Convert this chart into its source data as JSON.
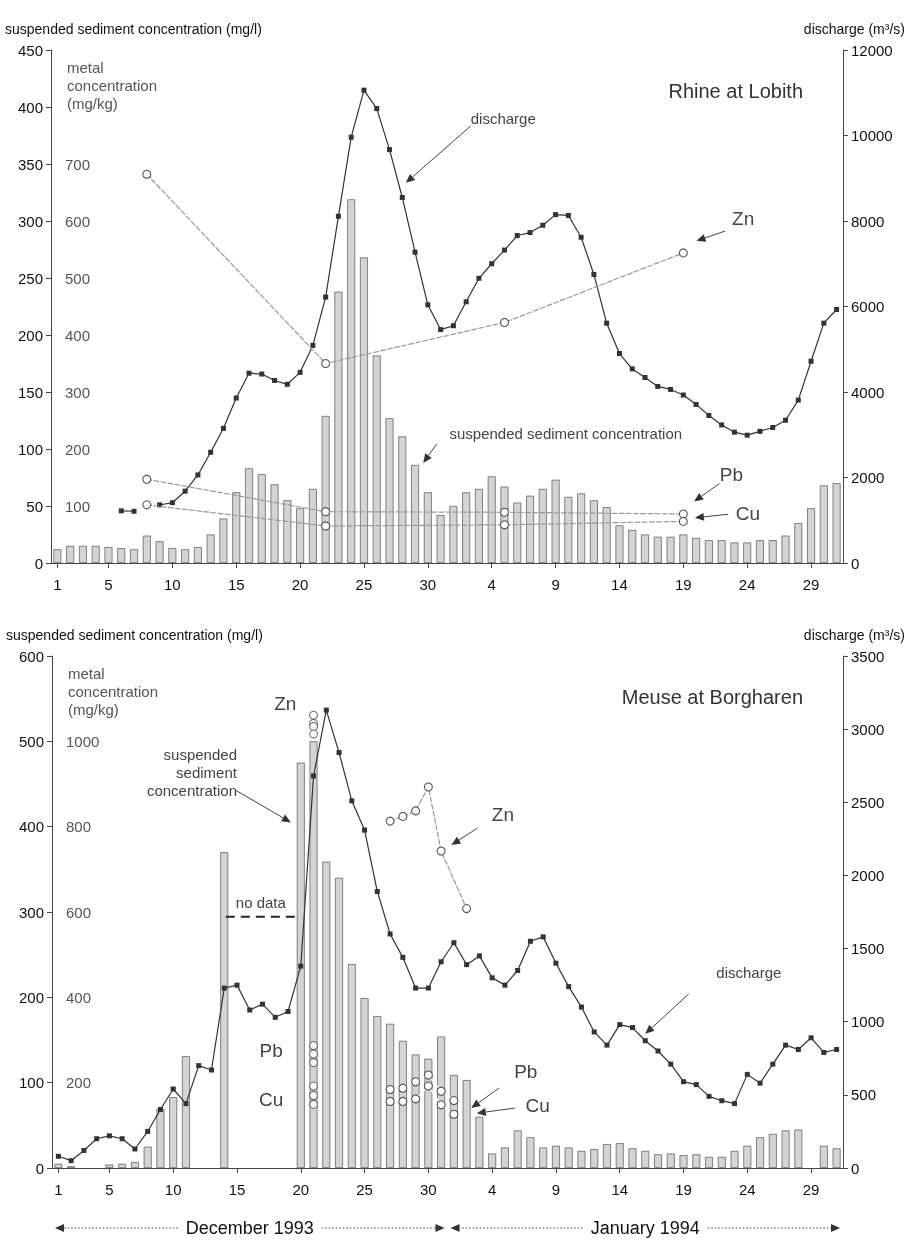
{
  "chart_data": [
    {
      "type": "bar",
      "title": "Rhine at Lobith",
      "ylabel": "suspended sediment concentration (mg/l)",
      "y2label": "discharge (m³/s)",
      "y3label": "metal\nconcentration\n(mg/kg)",
      "x": [
        "1993-12-01",
        "1993-12-02",
        "1993-12-03",
        "1993-12-04",
        "1993-12-05",
        "1993-12-06",
        "1993-12-07",
        "1993-12-08",
        "1993-12-09",
        "1993-12-10",
        "1993-12-11",
        "1993-12-12",
        "1993-12-13",
        "1993-12-14",
        "1993-12-15",
        "1993-12-16",
        "1993-12-17",
        "1993-12-18",
        "1993-12-19",
        "1993-12-20",
        "1993-12-21",
        "1993-12-22",
        "1993-12-23",
        "1993-12-24",
        "1993-12-25",
        "1993-12-26",
        "1993-12-27",
        "1993-12-28",
        "1993-12-29",
        "1993-12-30",
        "1993-12-31",
        "1994-01-01",
        "1994-01-02",
        "1994-01-03",
        "1994-01-04",
        "1994-01-05",
        "1994-01-06",
        "1994-01-07",
        "1994-01-08",
        "1994-01-09",
        "1994-01-10",
        "1994-01-11",
        "1994-01-12",
        "1994-01-13",
        "1994-01-14",
        "1994-01-15",
        "1994-01-16",
        "1994-01-17",
        "1994-01-18",
        "1994-01-19",
        "1994-01-20",
        "1994-01-21",
        "1994-01-22",
        "1994-01-23",
        "1994-01-24",
        "1994-01-25",
        "1994-01-26",
        "1994-01-27",
        "1994-01-28",
        "1994-01-29",
        "1994-01-30",
        "1994-01-31"
      ],
      "series": [
        {
          "color": "#d4d4d4",
          "values": [
            12,
            15,
            15,
            15,
            14,
            13,
            12,
            24,
            19,
            13,
            12,
            14,
            25,
            39,
            62,
            83,
            78,
            69,
            55,
            48,
            65,
            129,
            238,
            319,
            268,
            182,
            127,
            111,
            86,
            62,
            42,
            50,
            62,
            65,
            76,
            67,
            53,
            59,
            65,
            73,
            58,
            61,
            55,
            49,
            33,
            29,
            25,
            23,
            23,
            25,
            22,
            20,
            20,
            18,
            18,
            20,
            20,
            24,
            35,
            48,
            68,
            70
          ]
        },
        {
          "type": "line",
          "axis": "y2",
          "color": "#333333",
          "marker": "square",
          "line_style": "solid",
          "values": [
            null,
            null,
            null,
            null,
            null,
            1220,
            1210,
            null,
            1360,
            1410,
            1680,
            2060,
            2590,
            3150,
            3860,
            4440,
            4420,
            4270,
            4180,
            4460,
            5090,
            6220,
            8110,
            9960,
            11060,
            10630,
            9670,
            8550,
            7270,
            6040,
            5460,
            5550,
            6110,
            6660,
            7000,
            7320,
            7660,
            7730,
            7900,
            8150,
            8130,
            7620,
            6750,
            5610,
            4900,
            4540,
            4340,
            4130,
            4060,
            3930,
            3710,
            3450,
            3230,
            3060,
            2990,
            3080,
            3170,
            3340,
            3810,
            4720,
            5610,
            5930
          ]
        },
        {
          "type": "line",
          "axis": "y3",
          "color": "#999999",
          "marker": "circle",
          "line_style": "dashed",
          "x": [
            "1993-12-08",
            "1993-12-22",
            "1994-01-05",
            "1994-01-19"
          ],
          "values": [
            682,
            350,
            422,
            544
          ]
        },
        {
          "type": "line",
          "axis": "y3",
          "color": "#999999",
          "marker": "circle",
          "line_style": "dashed",
          "x": [
            "1993-12-08",
            "1993-12-22",
            "1994-01-05",
            "1994-01-19"
          ],
          "values": [
            147,
            90,
            89,
            86
          ]
        },
        {
          "type": "line",
          "axis": "y3",
          "color": "#999999",
          "marker": "circle",
          "line_style": "dashed",
          "x": [
            "1993-12-08",
            "1993-12-22",
            "1994-01-05",
            "1994-01-19"
          ],
          "values": [
            102,
            65,
            67,
            73
          ]
        }
      ],
      "xlim": [
        "1993-11-30T12:00",
        "1994-01-31T12:00"
      ],
      "xticks": [
        {
          "value": "1993-12-01",
          "label": "1"
        },
        {
          "value": "1993-12-05",
          "label": "5"
        },
        {
          "value": "1993-12-10",
          "label": "10"
        },
        {
          "value": "1993-12-15",
          "label": "15"
        },
        {
          "value": "1993-12-20",
          "label": "20"
        },
        {
          "value": "1993-12-25",
          "label": "25"
        },
        {
          "value": "1993-12-30",
          "label": "30"
        },
        {
          "value": "1994-01-04",
          "label": "4"
        },
        {
          "value": "1994-01-09",
          "label": "9"
        },
        {
          "value": "1994-01-14",
          "label": "14"
        },
        {
          "value": "1994-01-19",
          "label": "19"
        },
        {
          "value": "1994-01-24",
          "label": "24"
        },
        {
          "value": "1994-01-29",
          "label": "29"
        }
      ],
      "ylim": [
        0,
        450
      ],
      "yticks": [
        0,
        50,
        100,
        150,
        200,
        250,
        300,
        350,
        400,
        450
      ],
      "y2lim": [
        0,
        12000
      ],
      "y2ticks": [
        0,
        2000,
        4000,
        6000,
        8000,
        10000,
        12000
      ],
      "y3lim": [
        0,
        900
      ],
      "y3ticks": [
        100,
        200,
        300,
        400,
        500,
        600,
        700
      ],
      "annotations": [
        "discharge",
        "Zn",
        "suspended sediment concentration",
        "Pb",
        "Cu"
      ],
      "grid": false
    },
    {
      "type": "bar",
      "title": "Meuse at Borgharen",
      "ylabel": "suspended sediment concentration (mg/l)",
      "y2label": "discharge (m³/s)",
      "y3label": "metal\nconcentration\n(mg/kg)",
      "x": [
        "1993-12-01",
        "1993-12-02",
        "1993-12-03",
        "1993-12-04",
        "1993-12-05",
        "1993-12-06",
        "1993-12-07",
        "1993-12-08",
        "1993-12-09",
        "1993-12-10",
        "1993-12-11",
        "1993-12-12",
        "1993-12-13",
        "1993-12-14",
        "1993-12-15",
        "1993-12-16",
        "1993-12-17",
        "1993-12-18",
        "1993-12-19",
        "1993-12-20",
        "1993-12-21",
        "1993-12-22",
        "1993-12-23",
        "1993-12-24",
        "1993-12-25",
        "1993-12-26",
        "1993-12-27",
        "1993-12-28",
        "1993-12-29",
        "1993-12-30",
        "1993-12-31",
        "1994-01-01",
        "1994-01-02",
        "1994-01-03",
        "1994-01-04",
        "1994-01-05",
        "1994-01-06",
        "1994-01-07",
        "1994-01-08",
        "1994-01-09",
        "1994-01-10",
        "1994-01-11",
        "1994-01-12",
        "1994-01-13",
        "1994-01-14",
        "1994-01-15",
        "1994-01-16",
        "1994-01-17",
        "1994-01-18",
        "1994-01-19",
        "1994-01-20",
        "1994-01-21",
        "1994-01-22",
        "1994-01-23",
        "1994-01-24",
        "1994-01-25",
        "1994-01-26",
        "1994-01-27",
        "1994-01-28",
        "1994-01-29",
        "1994-01-30",
        "1994-01-31"
      ],
      "series": [
        {
          "color": "#d4d4d4",
          "values": [
            5,
            2,
            null,
            null,
            4,
            5,
            7,
            25,
            69,
            83,
            131,
            null,
            null,
            370,
            null,
            null,
            null,
            null,
            null,
            475,
            500,
            359,
            340,
            239,
            199,
            178,
            169,
            149,
            133,
            128,
            154,
            109,
            103,
            60,
            17,
            24,
            44,
            36,
            24,
            26,
            24,
            20,
            22,
            28,
            29,
            23,
            20,
            16,
            17,
            15,
            16,
            13,
            13,
            20,
            26,
            36,
            40,
            44,
            45,
            null,
            26,
            23
          ]
        },
        {
          "type": "line",
          "axis": "y2",
          "color": "#333333",
          "marker": "square",
          "line_style": "solid",
          "values": [
            80,
            50,
            120,
            200,
            220,
            200,
            130,
            250,
            400,
            540,
            440,
            700,
            670,
            1230,
            1250,
            1080,
            1120,
            1030,
            1070,
            1380,
            2680,
            3130,
            2840,
            2510,
            2310,
            1890,
            1600,
            1440,
            1230,
            1230,
            1410,
            1540,
            1390,
            1450,
            1300,
            1250,
            1350,
            1550,
            1580,
            1400,
            1240,
            1100,
            930,
            840,
            980,
            960,
            870,
            800,
            710,
            590,
            570,
            490,
            460,
            440,
            640,
            580,
            710,
            840,
            810,
            890,
            790,
            810
          ]
        },
        {
          "type": "scatter",
          "axis": "y3",
          "color": "#ffffff",
          "marker": "circle",
          "x": [
            "1993-12-21",
            "1993-12-21",
            "1993-12-21",
            "1993-12-21"
          ],
          "values": [
            1061,
            1042,
            1035,
            1017
          ]
        },
        {
          "type": "line",
          "axis": "y3",
          "color": "#999999",
          "marker": "circle",
          "line_style": "dashed",
          "x": [
            "1993-12-27",
            "1993-12-28",
            "1993-12-29",
            "1993-12-30",
            "1993-12-31",
            "1994-01-02"
          ],
          "values": [
            813,
            824,
            837,
            893,
            743,
            608
          ]
        },
        {
          "type": "scatter",
          "axis": "y3",
          "color": "#ffffff",
          "marker": "circle",
          "x": [
            "1993-12-21",
            "1993-12-21",
            "1993-12-21"
          ],
          "values": [
            287,
            267,
            247
          ]
        },
        {
          "type": "scatter",
          "axis": "y3",
          "color": "#ffffff",
          "marker": "circle",
          "x": [
            "1993-12-21",
            "1993-12-21",
            "1993-12-21"
          ],
          "values": [
            192,
            170,
            149
          ]
        },
        {
          "type": "line",
          "axis": "y3",
          "color": "#ffffff",
          "marker": "circle",
          "line_style": "solid",
          "x": [
            "1993-12-27",
            "1993-12-28",
            "1993-12-29",
            "1993-12-30",
            "1993-12-31",
            "1994-01-01"
          ],
          "values": [
            184,
            187,
            202,
            218,
            180,
            158
          ]
        },
        {
          "type": "line",
          "axis": "y3",
          "color": "#ffffff",
          "marker": "circle",
          "line_style": "solid",
          "x": [
            "1993-12-27",
            "1993-12-28",
            "1993-12-29",
            "1993-12-30",
            "1993-12-31",
            "1994-01-01"
          ],
          "values": [
            156,
            156,
            162,
            192,
            148,
            126
          ]
        }
      ],
      "xlim": [
        "1993-11-30T12:00",
        "1994-01-31T12:00"
      ],
      "xticks": [
        {
          "value": "1993-12-01",
          "label": "1"
        },
        {
          "value": "1993-12-05",
          "label": "5"
        },
        {
          "value": "1993-12-10",
          "label": "10"
        },
        {
          "value": "1993-12-15",
          "label": "15"
        },
        {
          "value": "1993-12-20",
          "label": "20"
        },
        {
          "value": "1993-12-25",
          "label": "25"
        },
        {
          "value": "1993-12-30",
          "label": "30"
        },
        {
          "value": "1994-01-04",
          "label": "4"
        },
        {
          "value": "1994-01-09",
          "label": "9"
        },
        {
          "value": "1994-01-14",
          "label": "14"
        },
        {
          "value": "1994-01-19",
          "label": "19"
        },
        {
          "value": "1994-01-24",
          "label": "24"
        },
        {
          "value": "1994-01-29",
          "label": "29"
        }
      ],
      "ylim": [
        0,
        600
      ],
      "yticks": [
        0,
        100,
        200,
        300,
        400,
        500,
        600
      ],
      "y2lim": [
        0,
        3500
      ],
      "y2ticks": [
        0,
        500,
        1000,
        1500,
        2000,
        2500,
        3000,
        3500
      ],
      "y3lim": [
        0,
        1200
      ],
      "y3ticks": [
        200,
        400,
        600,
        800,
        1000
      ],
      "annotations": [
        "Zn",
        "suspended\nsediment\nconcentration",
        "no data",
        "Pb",
        "Cu",
        "Zn",
        "Pb",
        "Cu",
        "discharge",
        "December 1993",
        "January 1994"
      ],
      "grid": false
    }
  ]
}
